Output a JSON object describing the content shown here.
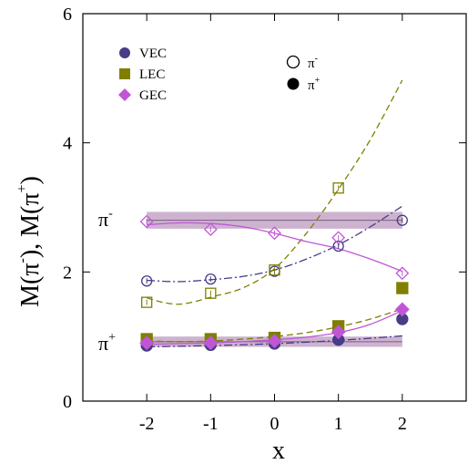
{
  "chart_data": {
    "type": "scatter",
    "title": "",
    "xlabel": "x",
    "ylabel_parts": {
      "m1": "M(π",
      "s1": "-",
      "m2": "), M(π",
      "s2": "+",
      "m3": ")"
    },
    "xlim": [
      -3,
      3
    ],
    "ylim": [
      0,
      6
    ],
    "xticks": [
      "-2",
      "-1",
      "0",
      "1",
      "2"
    ],
    "xtick_values": [
      -2,
      -1,
      0,
      1,
      2
    ],
    "yticks": [
      "0",
      "2",
      "4",
      "6"
    ],
    "ytick_values": [
      0,
      2,
      4,
      6
    ],
    "grid": false,
    "legend_position": "top-left",
    "colors": {
      "VEC": "#463d86",
      "LEC": "#7f7f00",
      "GEC": "#c056d6",
      "band_fill": "#cdb3cf",
      "band_line": "#7a6080"
    },
    "legend": {
      "series": [
        {
          "name": "VEC",
          "marker": "circle",
          "color_key": "VEC"
        },
        {
          "name": "LEC",
          "marker": "square",
          "color_key": "LEC"
        },
        {
          "name": "GEC",
          "marker": "diamond",
          "color_key": "GEC"
        }
      ],
      "fill": [
        {
          "label": "π",
          "sup": "-",
          "filled": false
        },
        {
          "label": "π",
          "sup": "+",
          "filled": true
        }
      ]
    },
    "bands": [
      {
        "label": "π",
        "sup": "-",
        "y": 2.8,
        "half_width": 0.13
      },
      {
        "label": "π",
        "sup": "+",
        "y": 0.92,
        "half_width": 0.08
      }
    ],
    "series": [
      {
        "name": "VEC",
        "particle": "π-",
        "marker": "circle",
        "filled": false,
        "x": [
          -2,
          -1,
          0,
          1,
          2
        ],
        "y": [
          1.86,
          1.89,
          2.01,
          2.4,
          2.8
        ]
      },
      {
        "name": "LEC",
        "particle": "π-",
        "marker": "square",
        "filled": false,
        "x": [
          -2,
          -1,
          0,
          1
        ],
        "y": [
          1.53,
          1.67,
          2.03,
          3.3
        ]
      },
      {
        "name": "GEC",
        "particle": "π-",
        "marker": "diamond",
        "filled": false,
        "x": [
          -2,
          -1,
          0,
          1,
          2
        ],
        "y": [
          2.78,
          2.66,
          2.6,
          2.53,
          1.98
        ]
      },
      {
        "name": "VEC",
        "particle": "π+",
        "marker": "circle",
        "filled": true,
        "x": [
          -2,
          -1,
          0,
          1,
          2
        ],
        "y": [
          0.86,
          0.87,
          0.89,
          0.95,
          1.27
        ]
      },
      {
        "name": "LEC",
        "particle": "π+",
        "marker": "square",
        "filled": true,
        "x": [
          -2,
          -1,
          0,
          1,
          2
        ],
        "y": [
          0.96,
          0.96,
          0.98,
          1.16,
          1.75
        ]
      },
      {
        "name": "GEC",
        "particle": "π+",
        "marker": "diamond",
        "filled": true,
        "x": [
          -2,
          -1,
          0,
          1,
          2
        ],
        "y": [
          0.9,
          0.9,
          0.93,
          1.07,
          1.42
        ]
      }
    ],
    "fits": [
      {
        "name": "VEC",
        "particle": "π-",
        "style": "dashdot",
        "x": [
          -2,
          -1.5,
          -1,
          -0.5,
          0,
          0.5,
          1,
          1.5,
          2
        ],
        "y": [
          1.87,
          1.85,
          1.88,
          1.93,
          2.03,
          2.2,
          2.42,
          2.7,
          3.02
        ]
      },
      {
        "name": "LEC",
        "particle": "π-",
        "style": "dashed",
        "x": [
          -2,
          -1.75,
          -1.5,
          -1.25,
          -1,
          -0.5,
          0,
          0.5,
          1,
          1.5,
          2
        ],
        "y": [
          1.6,
          1.53,
          1.5,
          1.54,
          1.61,
          1.75,
          2.05,
          2.6,
          3.28,
          4.05,
          4.97
        ]
      },
      {
        "name": "GEC",
        "particle": "π-",
        "style": "solid",
        "x": [
          -2,
          -1.5,
          -1,
          -0.5,
          0,
          0.5,
          1,
          1.5,
          2
        ],
        "y": [
          2.73,
          2.76,
          2.75,
          2.7,
          2.6,
          2.47,
          2.36,
          2.2,
          2.01
        ]
      },
      {
        "name": "VEC",
        "particle": "π+",
        "style": "dashdot",
        "x": [
          -2,
          -1,
          0,
          1,
          2
        ],
        "y": [
          0.84,
          0.86,
          0.89,
          0.94,
          1.01
        ]
      },
      {
        "name": "LEC",
        "particle": "π+",
        "style": "dashed",
        "x": [
          -2,
          -1.5,
          -1,
          -0.5,
          0,
          0.5,
          1,
          1.5,
          2
        ],
        "y": [
          0.93,
          0.92,
          0.93,
          0.96,
          1.0,
          1.06,
          1.15,
          1.27,
          1.43
        ]
      },
      {
        "name": "GEC",
        "particle": "π+",
        "style": "solid",
        "x": [
          -2,
          -1.5,
          -1,
          -0.5,
          0,
          0.5,
          1,
          1.5,
          2
        ],
        "y": [
          0.88,
          0.89,
          0.9,
          0.92,
          0.95,
          0.99,
          1.06,
          1.19,
          1.4
        ]
      }
    ]
  }
}
